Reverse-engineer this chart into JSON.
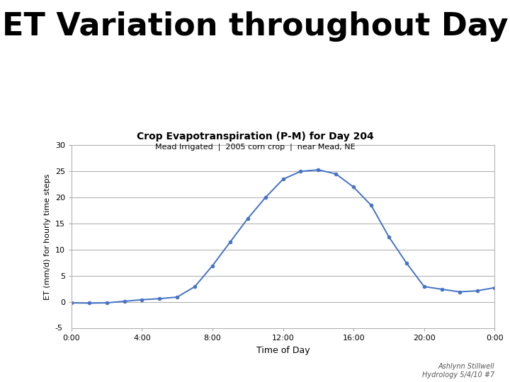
{
  "title": "ET Variation throughout Day",
  "subtitle1": "Crop Evapotranspiration (P-M) for Day 204",
  "subtitle2": "Mead Irrigated  |  2005 corn crop  |  near Mead, NE",
  "xlabel": "Time of Day",
  "ylabel": "ET (mm/d) for hourly time steps",
  "credit": "Ashlynn Stillwell\nHydrology 5/4/10 #7",
  "line_color": "#4472C4",
  "marker_color": "#4472C4",
  "background": "#ffffff",
  "ylim": [
    -5,
    30
  ],
  "yticks": [
    0,
    5,
    10,
    15,
    20,
    25,
    30
  ],
  "x_hours": [
    0,
    1,
    2,
    3,
    4,
    5,
    6,
    7,
    8,
    9,
    10,
    11,
    12,
    13,
    14,
    15,
    16,
    17,
    18,
    19,
    20,
    21,
    22,
    23,
    24
  ],
  "y_values": [
    -0.1,
    -0.15,
    -0.1,
    0.2,
    0.5,
    0.7,
    1.0,
    3.0,
    7.0,
    11.5,
    16.0,
    20.0,
    23.5,
    25.0,
    25.3,
    24.5,
    22.0,
    18.5,
    12.5,
    7.5,
    3.0,
    2.5,
    2.0,
    2.2,
    2.8
  ],
  "xtick_hours": [
    0,
    4,
    8,
    12,
    16,
    20,
    24
  ],
  "xtick_labels": [
    "0:00",
    "4:00",
    "8:00",
    "12:00",
    "16:00",
    "20:00",
    "0:00"
  ],
  "grid_color": "#aaaaaa",
  "spine_color": "#aaaaaa",
  "title_fontsize": 32,
  "subtitle1_fontsize": 10,
  "subtitle2_fontsize": 8,
  "ylabel_fontsize": 8,
  "xlabel_fontsize": 9,
  "tick_fontsize": 8,
  "credit_fontsize": 7
}
